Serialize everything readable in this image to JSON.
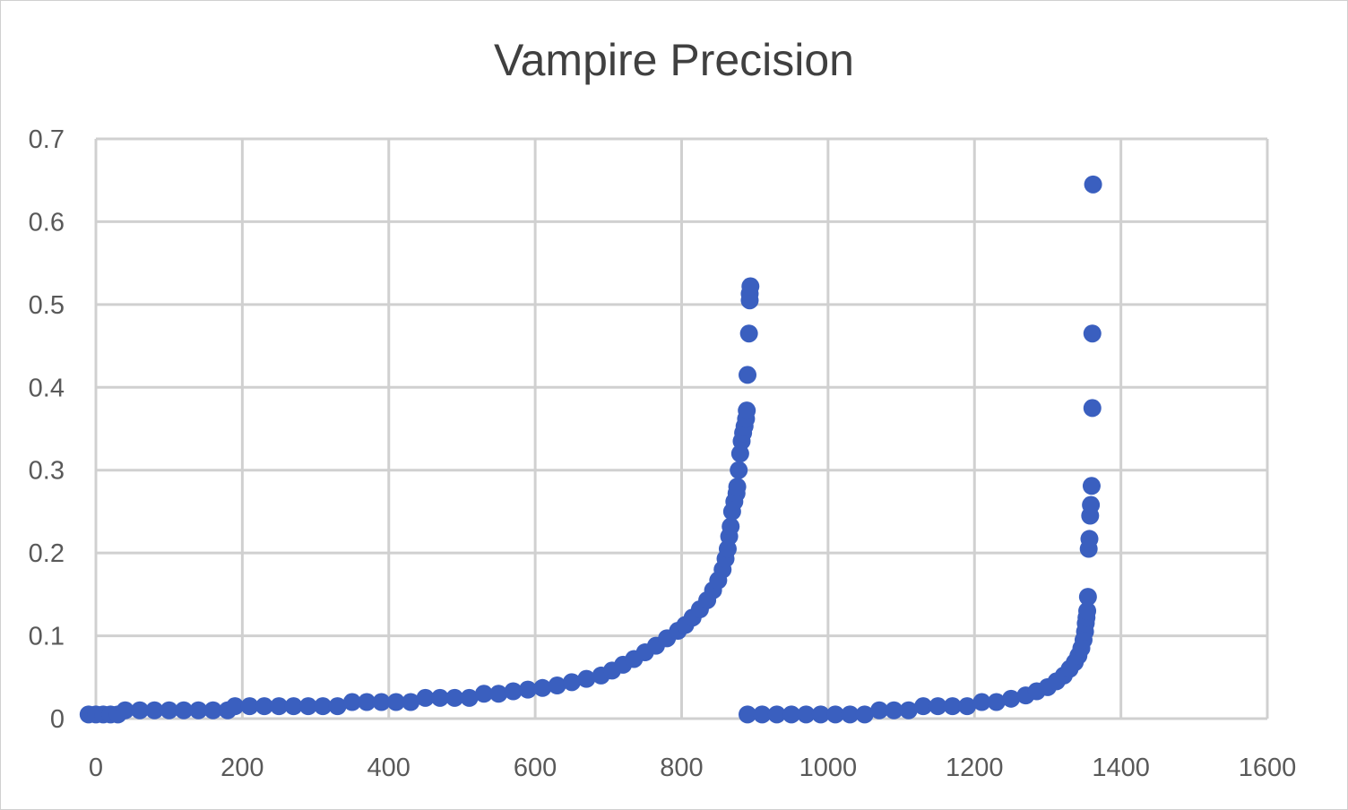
{
  "chart_data": {
    "type": "scatter",
    "title": "Vampire Precision",
    "xlabel": "",
    "ylabel": "",
    "xlim": [
      0,
      1600
    ],
    "ylim": [
      0,
      0.7
    ],
    "x_ticks": [
      0,
      200,
      400,
      600,
      800,
      1000,
      1200,
      1400,
      1600
    ],
    "y_ticks": [
      0,
      0.1,
      0.2,
      0.3,
      0.4,
      0.5,
      0.6,
      0.7
    ],
    "x_tick_labels": [
      "0",
      "200",
      "400",
      "600",
      "800",
      "1000",
      "1200",
      "1400",
      "1600"
    ],
    "y_tick_labels": [
      "0",
      "0.1",
      "0.2",
      "0.3",
      "0.4",
      "0.5",
      "0.6",
      "0.7"
    ],
    "grid": true,
    "legend": "none",
    "marker_color": "#3a5fbf",
    "series": [
      {
        "points": [
          [
            -10,
            0.005
          ],
          [
            0,
            0.005
          ],
          [
            10,
            0.005
          ],
          [
            20,
            0.005
          ],
          [
            30,
            0.005
          ],
          [
            40,
            0.01
          ],
          [
            60,
            0.01
          ],
          [
            80,
            0.01
          ],
          [
            100,
            0.01
          ],
          [
            120,
            0.01
          ],
          [
            140,
            0.01
          ],
          [
            160,
            0.01
          ],
          [
            180,
            0.01
          ],
          [
            190,
            0.015
          ],
          [
            210,
            0.015
          ],
          [
            230,
            0.015
          ],
          [
            250,
            0.015
          ],
          [
            270,
            0.015
          ],
          [
            290,
            0.015
          ],
          [
            310,
            0.015
          ],
          [
            330,
            0.015
          ],
          [
            350,
            0.02
          ],
          [
            370,
            0.02
          ],
          [
            390,
            0.02
          ],
          [
            410,
            0.02
          ],
          [
            430,
            0.02
          ],
          [
            450,
            0.025
          ],
          [
            470,
            0.025
          ],
          [
            490,
            0.025
          ],
          [
            510,
            0.025
          ],
          [
            530,
            0.03
          ],
          [
            550,
            0.03
          ],
          [
            570,
            0.033
          ],
          [
            590,
            0.035
          ],
          [
            610,
            0.037
          ],
          [
            630,
            0.04
          ],
          [
            650,
            0.044
          ],
          [
            670,
            0.048
          ],
          [
            690,
            0.052
          ],
          [
            705,
            0.058
          ],
          [
            720,
            0.065
          ],
          [
            735,
            0.072
          ],
          [
            750,
            0.08
          ],
          [
            765,
            0.088
          ],
          [
            780,
            0.097
          ],
          [
            795,
            0.106
          ],
          [
            805,
            0.113
          ],
          [
            815,
            0.122
          ],
          [
            825,
            0.132
          ],
          [
            835,
            0.143
          ],
          [
            843,
            0.155
          ],
          [
            850,
            0.167
          ],
          [
            856,
            0.18
          ],
          [
            860,
            0.193
          ],
          [
            863,
            0.205
          ],
          [
            865,
            0.22
          ],
          [
            867,
            0.232
          ],
          [
            869,
            0.25
          ],
          [
            872,
            0.262
          ],
          [
            875,
            0.272
          ],
          [
            876,
            0.28
          ],
          [
            878,
            0.3
          ],
          [
            880,
            0.32
          ],
          [
            882,
            0.335
          ],
          [
            884,
            0.345
          ],
          [
            886,
            0.353
          ],
          [
            888,
            0.362
          ],
          [
            889,
            0.372
          ],
          [
            890,
            0.415
          ],
          [
            892,
            0.465
          ],
          [
            893,
            0.505
          ],
          [
            893,
            0.513
          ],
          [
            894,
            0.522
          ],
          [
            890,
            0.005
          ],
          [
            910,
            0.005
          ],
          [
            930,
            0.005
          ],
          [
            950,
            0.005
          ],
          [
            970,
            0.005
          ],
          [
            990,
            0.005
          ],
          [
            1010,
            0.005
          ],
          [
            1030,
            0.005
          ],
          [
            1050,
            0.005
          ],
          [
            1070,
            0.01
          ],
          [
            1090,
            0.01
          ],
          [
            1110,
            0.01
          ],
          [
            1130,
            0.015
          ],
          [
            1150,
            0.015
          ],
          [
            1170,
            0.015
          ],
          [
            1190,
            0.015
          ],
          [
            1210,
            0.02
          ],
          [
            1230,
            0.02
          ],
          [
            1250,
            0.024
          ],
          [
            1270,
            0.028
          ],
          [
            1285,
            0.033
          ],
          [
            1300,
            0.038
          ],
          [
            1312,
            0.045
          ],
          [
            1322,
            0.052
          ],
          [
            1330,
            0.06
          ],
          [
            1337,
            0.068
          ],
          [
            1342,
            0.076
          ],
          [
            1346,
            0.085
          ],
          [
            1349,
            0.095
          ],
          [
            1351,
            0.105
          ],
          [
            1352,
            0.115
          ],
          [
            1353,
            0.122
          ],
          [
            1354,
            0.13
          ],
          [
            1355,
            0.147
          ],
          [
            1356,
            0.205
          ],
          [
            1357,
            0.217
          ],
          [
            1358,
            0.245
          ],
          [
            1359,
            0.258
          ],
          [
            1360,
            0.281
          ],
          [
            1361,
            0.375
          ],
          [
            1361,
            0.465
          ],
          [
            1362,
            0.645
          ]
        ]
      }
    ]
  }
}
